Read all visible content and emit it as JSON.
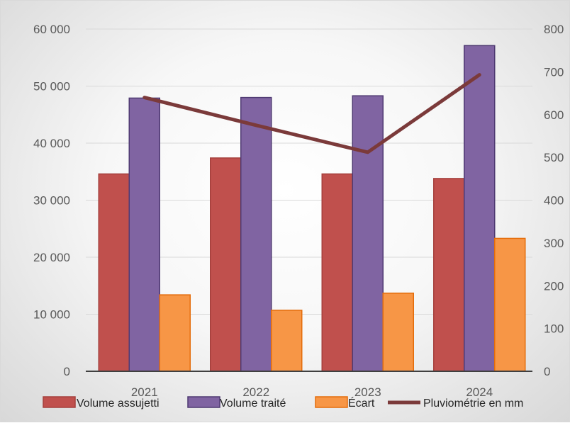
{
  "chart_data": {
    "type": "bar",
    "categories": [
      "2021",
      "2022",
      "2023",
      "2024"
    ],
    "series": [
      {
        "name": "Volume assujetti",
        "type": "bar",
        "axis": "left",
        "color": "#c0504d",
        "stroke": "#a5403d",
        "values": [
          34600,
          37400,
          34600,
          33800
        ]
      },
      {
        "name": "Volume traité",
        "type": "bar",
        "axis": "left",
        "color": "#8064a2",
        "stroke": "#4f3a72",
        "values": [
          47900,
          48000,
          48300,
          57100
        ]
      },
      {
        "name": "Écart",
        "type": "bar",
        "axis": "left",
        "color": "#f79646",
        "stroke": "#e46c0a",
        "values": [
          13400,
          10700,
          13700,
          23300
        ]
      },
      {
        "name": "Pluviométrie en mm",
        "type": "line",
        "axis": "right",
        "color": "#7b3a3a",
        "values": [
          640,
          575,
          512,
          693
        ]
      }
    ],
    "y_left": {
      "ylim": [
        0,
        60000
      ],
      "ticks": [
        "0",
        "10 000",
        "20 000",
        "30 000",
        "40 000",
        "50 000",
        "60 000"
      ]
    },
    "y_right": {
      "ylim": [
        0,
        800
      ],
      "ticks": [
        "0",
        "100",
        "200",
        "300",
        "400",
        "500",
        "600",
        "700",
        "800"
      ]
    },
    "grid": true,
    "legend_position": "bottom",
    "title": ""
  }
}
